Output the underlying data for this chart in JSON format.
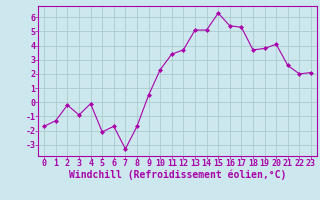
{
  "x": [
    0,
    1,
    2,
    3,
    4,
    5,
    6,
    7,
    8,
    9,
    10,
    11,
    12,
    13,
    14,
    15,
    16,
    17,
    18,
    19,
    20,
    21,
    22,
    23
  ],
  "y": [
    -1.7,
    -1.3,
    -0.2,
    -0.9,
    -0.1,
    -2.1,
    -1.7,
    -3.3,
    -1.7,
    0.5,
    2.3,
    3.4,
    3.7,
    5.1,
    5.1,
    6.3,
    5.4,
    5.3,
    3.7,
    3.8,
    4.1,
    2.6,
    2.0,
    2.1
  ],
  "line_color": "#aa00aa",
  "marker": "D",
  "marker_size": 2,
  "bg_color": "#cce8ee",
  "grid_color": "#aacccc",
  "xlabel": "Windchill (Refroidissement éolien,°C)",
  "xlabel_color": "#aa00aa",
  "ylim": [
    -3.8,
    6.8
  ],
  "yticks": [
    -3,
    -2,
    -1,
    0,
    1,
    2,
    3,
    4,
    5,
    6
  ],
  "xticks": [
    0,
    1,
    2,
    3,
    4,
    5,
    6,
    7,
    8,
    9,
    10,
    11,
    12,
    13,
    14,
    15,
    16,
    17,
    18,
    19,
    20,
    21,
    22,
    23
  ],
  "tick_color": "#aa00aa",
  "tick_labelsize": 6,
  "xlabel_fontsize": 7,
  "spine_color": "#aa00aa",
  "xlim": [
    -0.5,
    23.5
  ]
}
